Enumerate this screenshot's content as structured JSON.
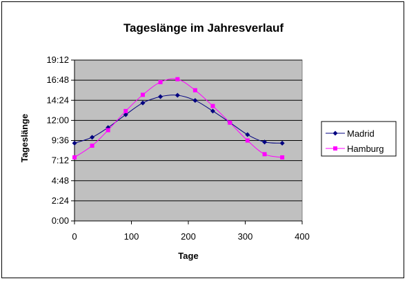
{
  "chart_data": {
    "type": "line",
    "title": "Tageslänge im Jahresverlauf",
    "xlabel": "Tage",
    "ylabel": "Tageslänge",
    "xlim": [
      0,
      400
    ],
    "ylim_minutes": [
      0,
      1152
    ],
    "x_ticks": [
      "0",
      "100",
      "200",
      "300",
      "400"
    ],
    "y_ticks": [
      "0:00",
      "2:24",
      "4:48",
      "7:12",
      "9:36",
      "12:00",
      "14:24",
      "16:48",
      "19:12"
    ],
    "y_unit": "hours:minutes",
    "plot_background": "#c0c0c0",
    "grid": "horizontal",
    "legend_position": "right",
    "series": [
      {
        "name": "Madrid",
        "color": "#000080",
        "marker": "diamond",
        "x": [
          0,
          31,
          59,
          90,
          120,
          151,
          181,
          212,
          243,
          273,
          304,
          334,
          365
        ],
        "y": [
          "9:17",
          "9:59",
          "11:09",
          "12:41",
          "14:05",
          "14:50",
          "15:00",
          "14:23",
          "13:07",
          "11:45",
          "10:18",
          "9:25",
          "9:17"
        ]
      },
      {
        "name": "Hamburg",
        "color": "#ff00ff",
        "marker": "square",
        "x": [
          0,
          31,
          59,
          90,
          120,
          151,
          181,
          212,
          243,
          273,
          304,
          334,
          365
        ],
        "y": [
          "7:35",
          "8:59",
          "10:50",
          "13:07",
          "15:03",
          "16:34",
          "16:55",
          "15:36",
          "13:43",
          "11:44",
          "9:36",
          "7:58",
          "7:35"
        ]
      }
    ]
  }
}
